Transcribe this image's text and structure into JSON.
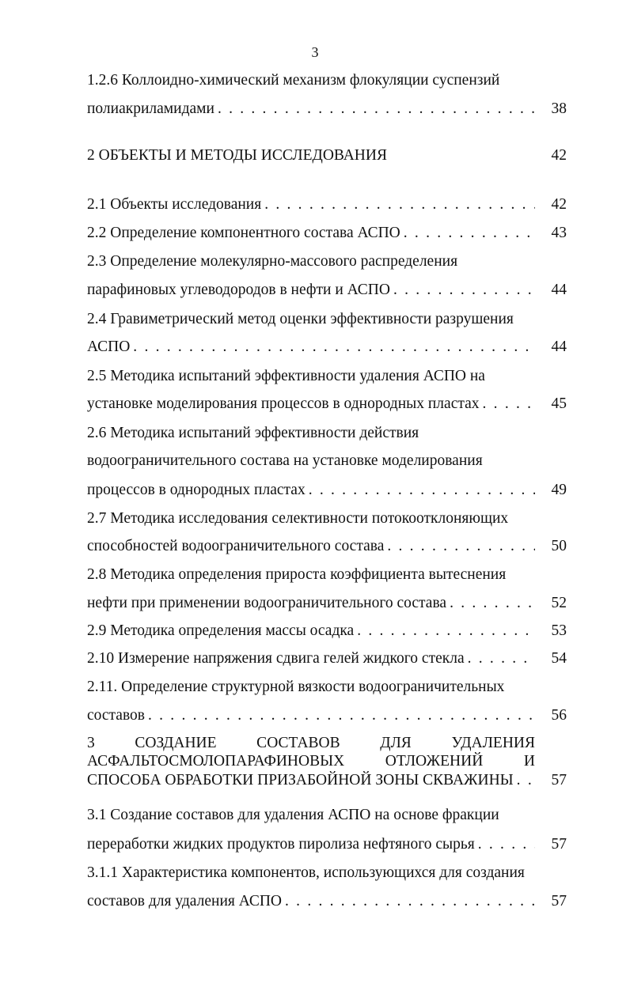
{
  "page_number": "3",
  "toc": [
    {
      "lines": [
        "1.2.6 Коллоидно-химический механизм флокуляции суспензий",
        "полиакриламидами"
      ],
      "page": "38",
      "leader": true
    },
    {
      "lines": [
        "2 ОБЪЕКТЫ И МЕТОДЫ ИССЛЕДОВАНИЯ"
      ],
      "page": "42",
      "leader": false
    },
    {
      "lines": [
        "2.1 Объекты исследования"
      ],
      "page": "42",
      "leader": true
    },
    {
      "lines": [
        "2.2 Определение компонентного состава АСПО"
      ],
      "page": "43",
      "leader": true
    },
    {
      "lines": [
        "2.3 Определение молекулярно-массового распределения",
        "парафиновых углеводородов в нефти и АСПО"
      ],
      "page": "44",
      "leader": true
    },
    {
      "lines": [
        "2.4 Гравиметрический метод оценки эффективности разрушения",
        "АСПО"
      ],
      "page": "44",
      "leader": true
    },
    {
      "lines": [
        "2.5 Методика испытаний эффективности удаления АСПО на",
        "установке моделирования процессов в однородных пластах"
      ],
      "page": "45",
      "leader": true
    },
    {
      "lines": [
        "2.6 Методика испытаний эффективности действия",
        "водоограничительного состава на установке моделирования",
        "процессов в однородных пластах"
      ],
      "page": "49",
      "leader": true
    },
    {
      "lines": [
        "2.7 Методика исследования селективности потокоотклоняющих",
        "способностей водоограничительного состава"
      ],
      "page": "50",
      "leader": true
    },
    {
      "lines": [
        "2.8 Методика определения прироста коэффициента вытеснения",
        "нефти при применении водоограничительного состава"
      ],
      "page": "52",
      "leader": true
    },
    {
      "lines": [
        "2.9 Методика определения массы осадка"
      ],
      "page": "53",
      "leader": true
    },
    {
      "lines": [
        "2.10 Измерение напряжения сдвига гелей жидкого стекла"
      ],
      "page": "54",
      "leader": true
    },
    {
      "lines": [
        "2.11. Определение структурной вязкости водоограничительных",
        "составов"
      ],
      "page": "56",
      "leader": true
    },
    {
      "lines": [
        "3 СОЗДАНИЕ СОСТАВОВ ДЛЯ УДАЛЕНИЯ",
        "АСФАЛЬТОСМОЛОПАРАФИНОВЫХ ОТЛОЖЕНИЙ И",
        "СПОСОБА ОБРАБОТКИ ПРИЗАБОЙНОЙ ЗОНЫ СКВАЖИНЫ"
      ],
      "page": "57",
      "leader": true
    },
    {
      "lines": [
        "3.1 Создание составов для удаления АСПО на основе фракции",
        "переработки жидких продуктов пиролиза нефтяного сырья"
      ],
      "page": "57",
      "leader": true
    },
    {
      "lines": [
        "3.1.1 Характеристика компонентов, использующихся для создания",
        "составов для удаления АСПО"
      ],
      "page": "57",
      "leader": true
    }
  ]
}
